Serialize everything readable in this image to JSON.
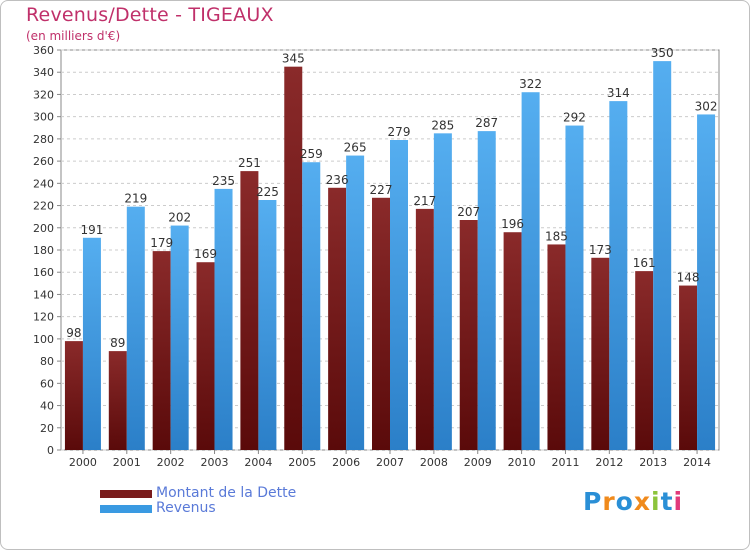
{
  "title": "Revenus/Dette - TIGEAUX",
  "subtitle": "(en milliers d'€)",
  "logo": "Proxiti",
  "colors": {
    "dette": "#7a1c1c",
    "revenus": "#3a9ae2",
    "title": "#c0306a",
    "legend_text": "#5a7ad8"
  },
  "legend": [
    {
      "name": "Montant de la Dette",
      "color": "#7a1c1c"
    },
    {
      "name": "Revenus",
      "color": "#3a9ae2"
    }
  ],
  "chart_data": {
    "type": "bar",
    "title": "Revenus/Dette - TIGEAUX",
    "subtitle": "(en milliers d'€)",
    "categories": [
      "2000",
      "2001",
      "2002",
      "2003",
      "2004",
      "2005",
      "2006",
      "2007",
      "2008",
      "2009",
      "2010",
      "2011",
      "2012",
      "2013",
      "2014"
    ],
    "series": [
      {
        "name": "Montant de la Dette",
        "values": [
          98,
          89,
          179,
          169,
          251,
          345,
          236,
          227,
          217,
          207,
          196,
          185,
          173,
          161,
          148
        ]
      },
      {
        "name": "Revenus",
        "values": [
          191,
          219,
          202,
          235,
          225,
          259,
          265,
          279,
          285,
          287,
          322,
          292,
          314,
          350,
          302
        ]
      }
    ],
    "ylim": [
      0,
      360
    ],
    "ytick_step": 20,
    "grid": true,
    "legend_position": "bottom-left"
  }
}
